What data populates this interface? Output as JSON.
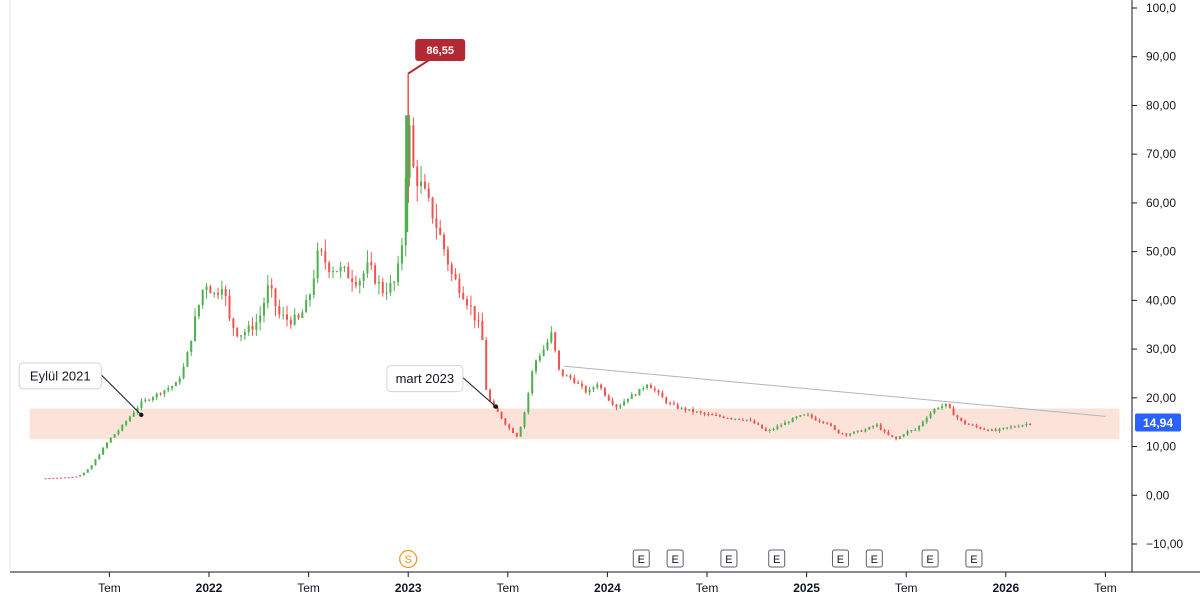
{
  "chart_data": {
    "type": "candlestick",
    "price_axis": {
      "ticks": [
        "100,0",
        "90,00",
        "80,00",
        "70,00",
        "60,00",
        "50,00",
        "40,00",
        "30,00",
        "20,00",
        "10,00",
        "0,00",
        "−10,00"
      ],
      "tick_values": [
        100,
        90,
        80,
        70,
        60,
        50,
        40,
        30,
        20,
        10,
        0,
        -10
      ],
      "range": [
        -13,
        101
      ]
    },
    "time_axis": {
      "labels": [
        {
          "text": "Tem",
          "t": 2021.5,
          "year": false
        },
        {
          "text": "2022",
          "t": 2022.0,
          "year": true
        },
        {
          "text": "Tem",
          "t": 2022.5,
          "year": false
        },
        {
          "text": "2023",
          "t": 2023.0,
          "year": true
        },
        {
          "text": "Tem",
          "t": 2023.5,
          "year": false
        },
        {
          "text": "2024",
          "t": 2024.0,
          "year": true
        },
        {
          "text": "Tem",
          "t": 2024.5,
          "year": false
        },
        {
          "text": "2025",
          "t": 2025.0,
          "year": true
        },
        {
          "text": "Tem",
          "t": 2025.5,
          "year": false
        },
        {
          "text": "2026",
          "t": 2026.0,
          "year": true
        },
        {
          "text": "Tem",
          "t": 2026.5,
          "year": false
        }
      ],
      "range": [
        2021.05,
        2026.6
      ]
    },
    "price_path": [
      [
        2021.18,
        3.5
      ],
      [
        2021.25,
        3.6
      ],
      [
        2021.33,
        3.8
      ],
      [
        2021.36,
        4.2
      ],
      [
        2021.4,
        5.5
      ],
      [
        2021.45,
        8.5
      ],
      [
        2021.5,
        11.5
      ],
      [
        2021.55,
        13.5
      ],
      [
        2021.6,
        16
      ],
      [
        2021.66,
        19
      ],
      [
        2021.75,
        21
      ],
      [
        2021.84,
        23
      ],
      [
        2021.88,
        27
      ],
      [
        2021.93,
        36
      ],
      [
        2021.98,
        44
      ],
      [
        2022.03,
        41
      ],
      [
        2022.07,
        44
      ],
      [
        2022.1,
        36
      ],
      [
        2022.15,
        33
      ],
      [
        2022.2,
        34
      ],
      [
        2022.25,
        36
      ],
      [
        2022.3,
        43
      ],
      [
        2022.35,
        37
      ],
      [
        2022.4,
        36
      ],
      [
        2022.45,
        36
      ],
      [
        2022.5,
        40
      ],
      [
        2022.55,
        50
      ],
      [
        2022.6,
        47
      ],
      [
        2022.67,
        46
      ],
      [
        2022.75,
        44
      ],
      [
        2022.8,
        47
      ],
      [
        2022.87,
        42
      ],
      [
        2022.92,
        43
      ],
      [
        2022.94,
        44
      ],
      [
        2022.96,
        49
      ],
      [
        2022.975,
        54
      ],
      [
        2023.0,
        79
      ],
      [
        2023.015,
        70
      ],
      [
        2023.03,
        66
      ],
      [
        2023.07,
        63
      ],
      [
        2023.12,
        58
      ],
      [
        2023.17,
        52
      ],
      [
        2023.22,
        45
      ],
      [
        2023.27,
        42
      ],
      [
        2023.32,
        38
      ],
      [
        2023.37,
        33
      ],
      [
        2023.39,
        22
      ],
      [
        2023.42,
        18
      ],
      [
        2023.45,
        17
      ],
      [
        2023.5,
        14
      ],
      [
        2023.55,
        12
      ],
      [
        2023.59,
        18
      ],
      [
        2023.63,
        27
      ],
      [
        2023.68,
        30
      ],
      [
        2023.72,
        33
      ],
      [
        2023.76,
        25
      ],
      [
        2023.82,
        24
      ],
      [
        2023.9,
        21
      ],
      [
        2023.95,
        23
      ],
      [
        2024.0,
        20
      ],
      [
        2024.05,
        18
      ],
      [
        2024.1,
        20
      ],
      [
        2024.15,
        21
      ],
      [
        2024.2,
        23
      ],
      [
        2024.25,
        21
      ],
      [
        2024.3,
        19
      ],
      [
        2024.35,
        18
      ],
      [
        2024.45,
        17
      ],
      [
        2024.5,
        16.5
      ],
      [
        2024.6,
        16
      ],
      [
        2024.7,
        15.5
      ],
      [
        2024.75,
        14.5
      ],
      [
        2024.8,
        13
      ],
      [
        2024.85,
        14
      ],
      [
        2024.9,
        15
      ],
      [
        2024.95,
        16
      ],
      [
        2025.0,
        16.5
      ],
      [
        2025.05,
        15.5
      ],
      [
        2025.1,
        15
      ],
      [
        2025.15,
        13
      ],
      [
        2025.2,
        12.5
      ],
      [
        2025.25,
        13
      ],
      [
        2025.3,
        13.5
      ],
      [
        2025.35,
        14.5
      ],
      [
        2025.4,
        12.5
      ],
      [
        2025.45,
        11.5
      ],
      [
        2025.5,
        13
      ],
      [
        2025.55,
        13.5
      ],
      [
        2025.6,
        16
      ],
      [
        2025.65,
        18
      ],
      [
        2025.7,
        18.5
      ],
      [
        2025.73,
        17
      ],
      [
        2025.78,
        15
      ],
      [
        2025.85,
        14
      ],
      [
        2025.9,
        13.5
      ],
      [
        2025.95,
        13.2
      ],
      [
        2026.0,
        13.8
      ],
      [
        2026.05,
        14.2
      ],
      [
        2026.1,
        14.6
      ],
      [
        2026.13,
        14.94
      ]
    ],
    "peak": {
      "label": "86,55",
      "value": 86.55,
      "t": 2023.0
    },
    "last_price": {
      "label": "14,94",
      "value": 14.94
    },
    "support_zone": {
      "low": 11.5,
      "high": 17.8,
      "t_start": 2021.1,
      "t_end": 2026.57
    },
    "trendline": {
      "t1": 2023.78,
      "v1": 26.5,
      "t2": 2026.5,
      "v2": 16.2
    },
    "annotations": [
      {
        "text": "Eylül 2021",
        "t": 2021.66,
        "value": 16.5
      },
      {
        "text": "mart 2023",
        "t": 2023.44,
        "value": 18.2
      }
    ],
    "event_markers": [
      {
        "text": "S",
        "t": 2023.0,
        "kind": "split"
      },
      {
        "text": "E",
        "t": 2024.17,
        "kind": "earnings"
      },
      {
        "text": "E",
        "t": 2024.34,
        "kind": "earnings"
      },
      {
        "text": "E",
        "t": 2024.61,
        "kind": "earnings"
      },
      {
        "text": "E",
        "t": 2024.85,
        "kind": "earnings"
      },
      {
        "text": "E",
        "t": 2025.17,
        "kind": "earnings"
      },
      {
        "text": "E",
        "t": 2025.34,
        "kind": "earnings"
      },
      {
        "text": "E",
        "t": 2025.62,
        "kind": "earnings"
      },
      {
        "text": "E",
        "t": 2025.84,
        "kind": "earnings"
      }
    ],
    "colors": {
      "up": "#26a69a",
      "up_bar": "#4caf50",
      "down": "#ef5350",
      "zone": "#fbe3da",
      "trendline": "#b2b5be",
      "peak_label": "#b22833",
      "last_label": "#2962ff",
      "split_marker": "#f7931a",
      "axis": "#131722"
    }
  }
}
